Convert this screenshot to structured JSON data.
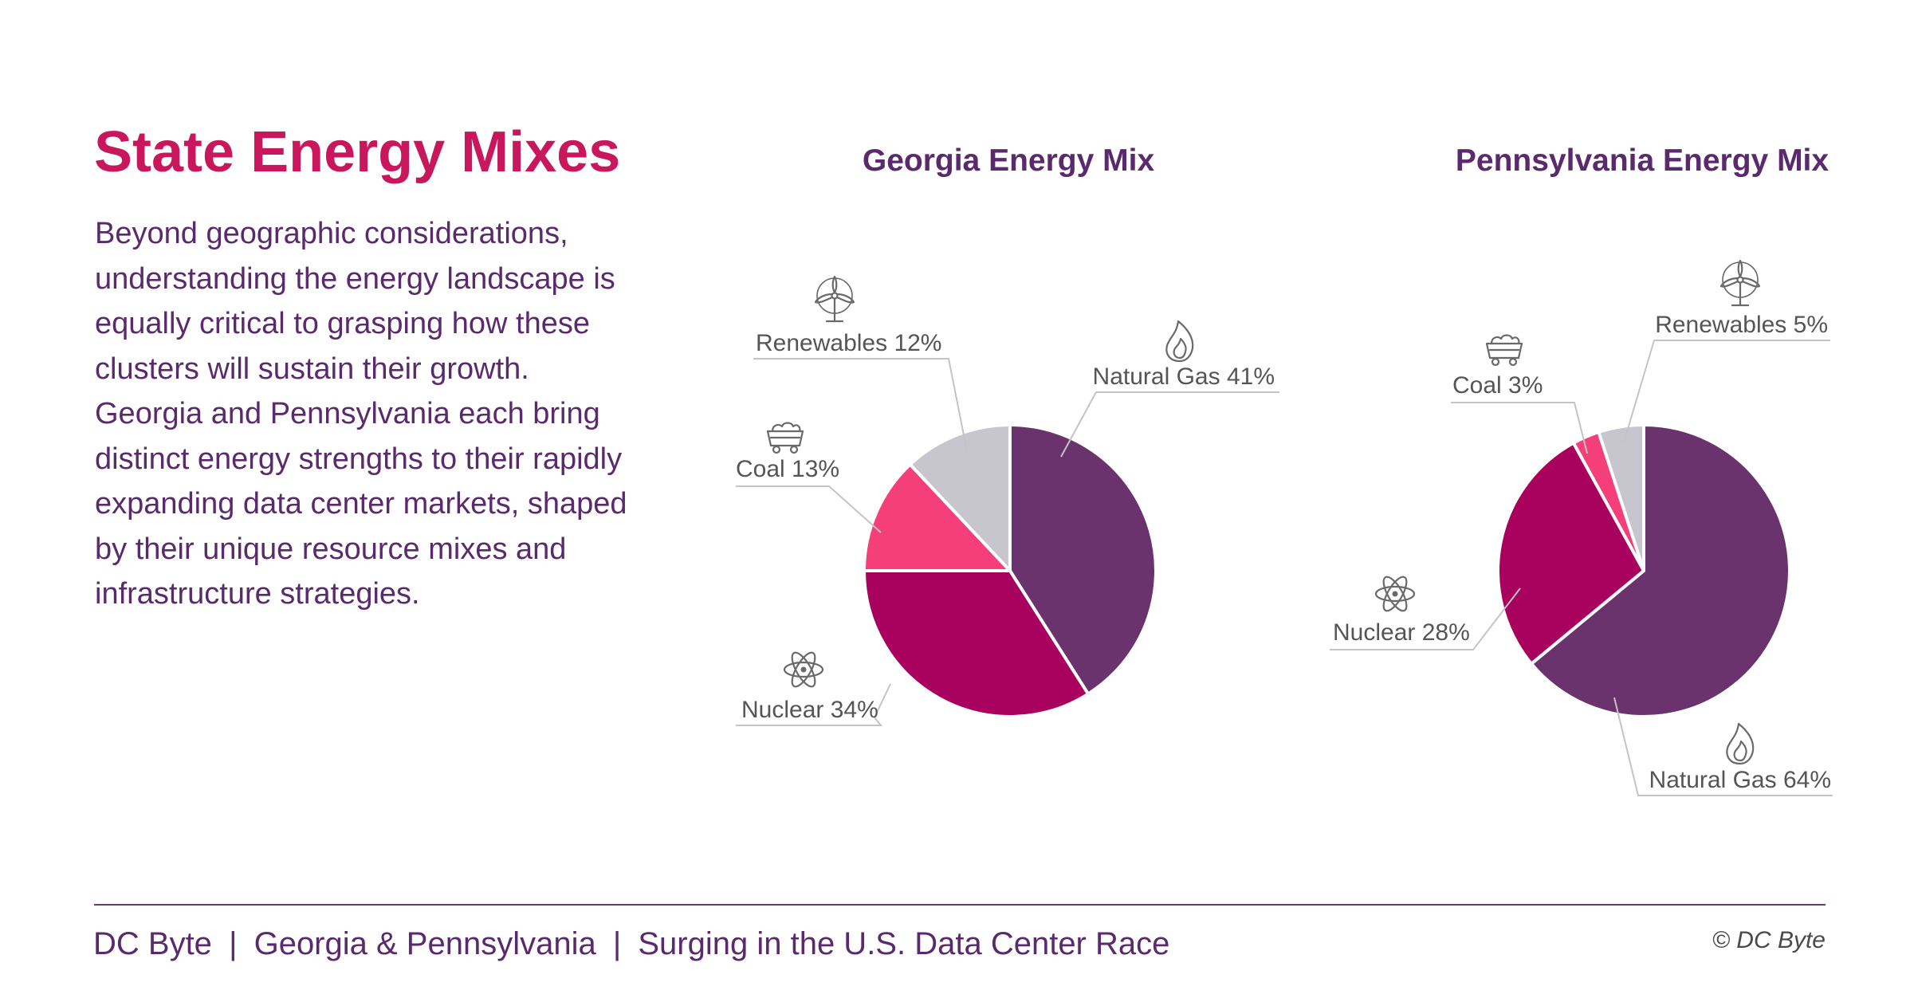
{
  "heading": "State Energy Mixes",
  "paragraph": "Beyond geographic considerations, understanding the energy landscape is equally critical to grasping how these clusters will sustain their growth. Georgia and Pennsylvania each bring distinct energy strengths to their rapidly expanding data center markets, shaped by their unique resource mixes and infrastructure strategies.",
  "colors": {
    "natural_gas": "#6b336e",
    "nuclear": "#a8025e",
    "coal": "#f43f7b",
    "renewables": "#c7c6cf",
    "heading": "#c8175d",
    "text": "#5a2a6d",
    "label": "#555555",
    "leader": "#c4c4c4"
  },
  "chart_data": [
    {
      "type": "pie",
      "title": "Georgia Energy Mix",
      "categories": [
        "Natural Gas",
        "Nuclear",
        "Coal",
        "Renewables"
      ],
      "values": [
        41,
        34,
        13,
        12
      ],
      "labels": [
        "Natural Gas 41%",
        "Nuclear 34%",
        "Coal 13%",
        "Renewables 12%"
      ],
      "icons": [
        "flame-icon",
        "atom-icon",
        "coal-cart-icon",
        "wind-turbine-icon"
      ]
    },
    {
      "type": "pie",
      "title": "Pennsylvania Energy Mix",
      "categories": [
        "Natural Gas",
        "Nuclear",
        "Coal",
        "Renewables"
      ],
      "values": [
        64,
        28,
        3,
        5
      ],
      "labels": [
        "Natural Gas 64%",
        "Nuclear 28%",
        "Coal 3%",
        "Renewables 5%"
      ],
      "icons": [
        "flame-icon",
        "atom-icon",
        "coal-cart-icon",
        "wind-turbine-icon"
      ]
    }
  ],
  "footer": {
    "brand": "DC Byte",
    "separator": "|",
    "section": "Georgia & Pennsylvania",
    "report": "Surging in the U.S. Data Center Race",
    "copyright": "© DC Byte"
  }
}
